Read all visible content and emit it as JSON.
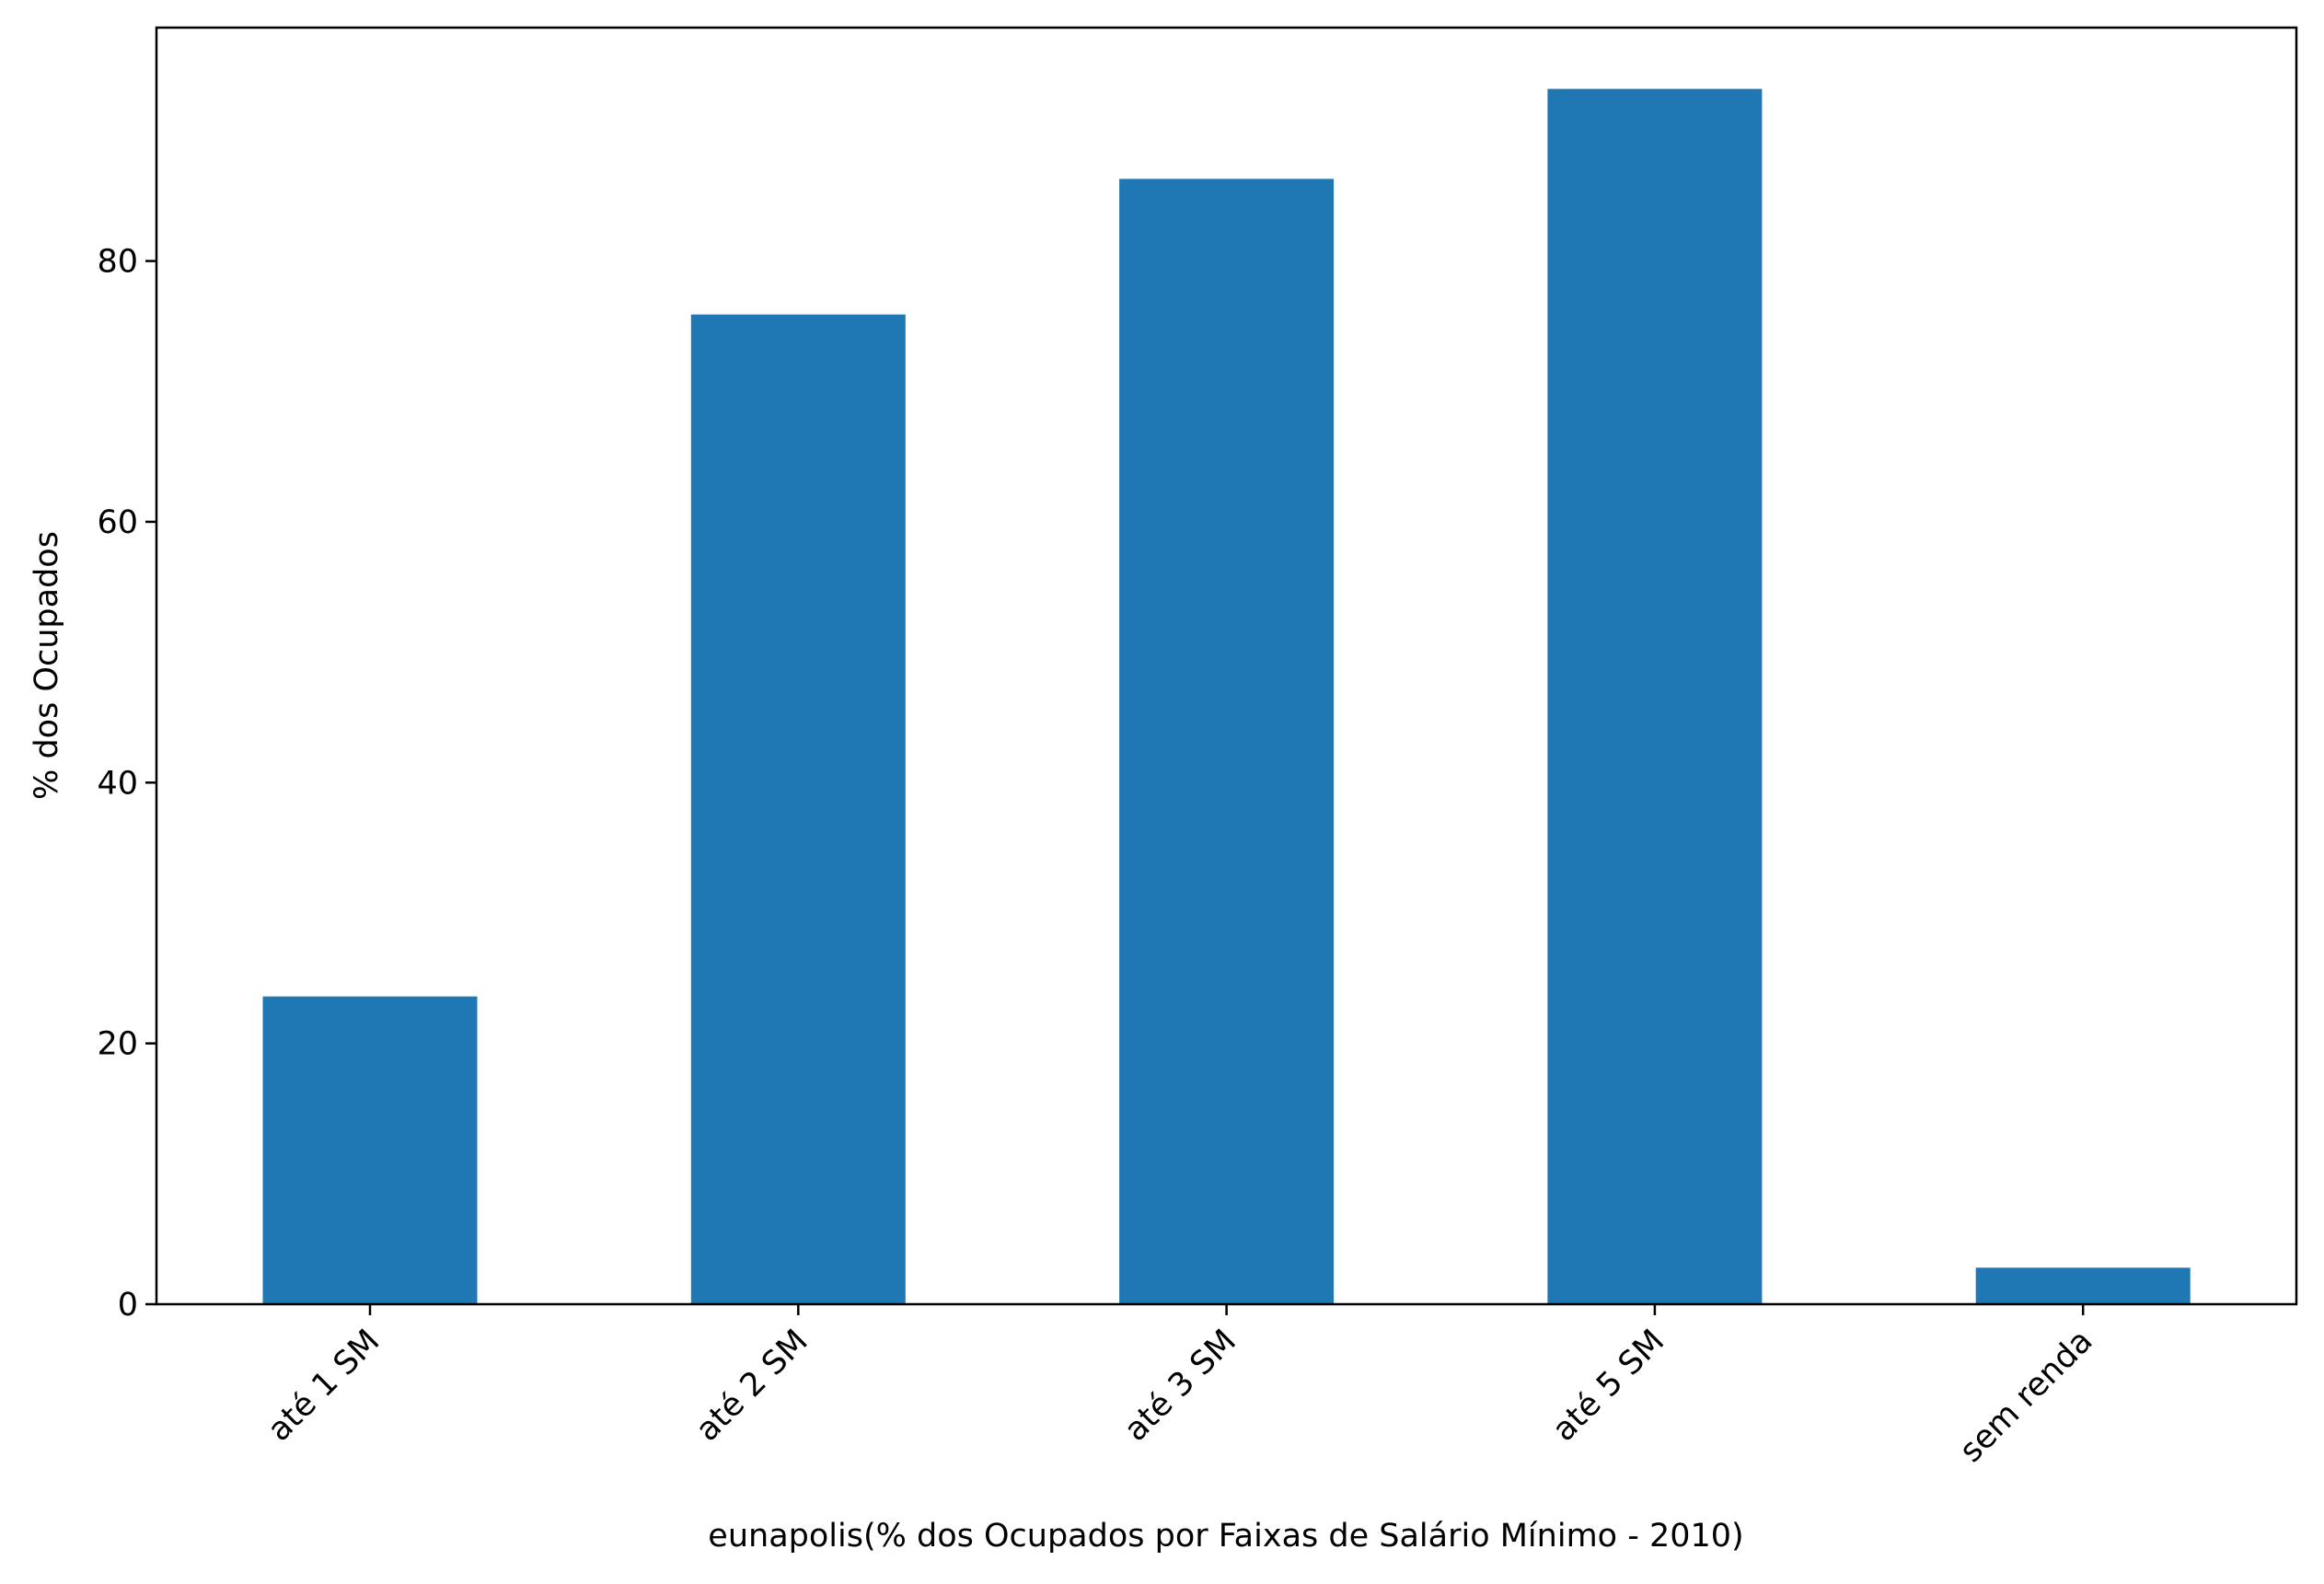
{
  "chart_data": {
    "type": "bar",
    "title": "",
    "xlabel": "eunapolis(% dos Ocupados por Faixas de Salário Mínimo - 2010)",
    "ylabel": "% dos Ocupados",
    "categories": [
      "até 1 SM",
      "até 2 SM",
      "até 3 SM",
      "até 5 SM",
      "sem renda"
    ],
    "values": [
      23.6,
      75.9,
      86.3,
      93.2,
      2.8
    ],
    "ylim": [
      0,
      97.9
    ],
    "yticks": [
      0,
      20,
      40,
      60,
      80
    ],
    "bar_color": "#1f77b4",
    "grid": false,
    "legend": "none"
  }
}
